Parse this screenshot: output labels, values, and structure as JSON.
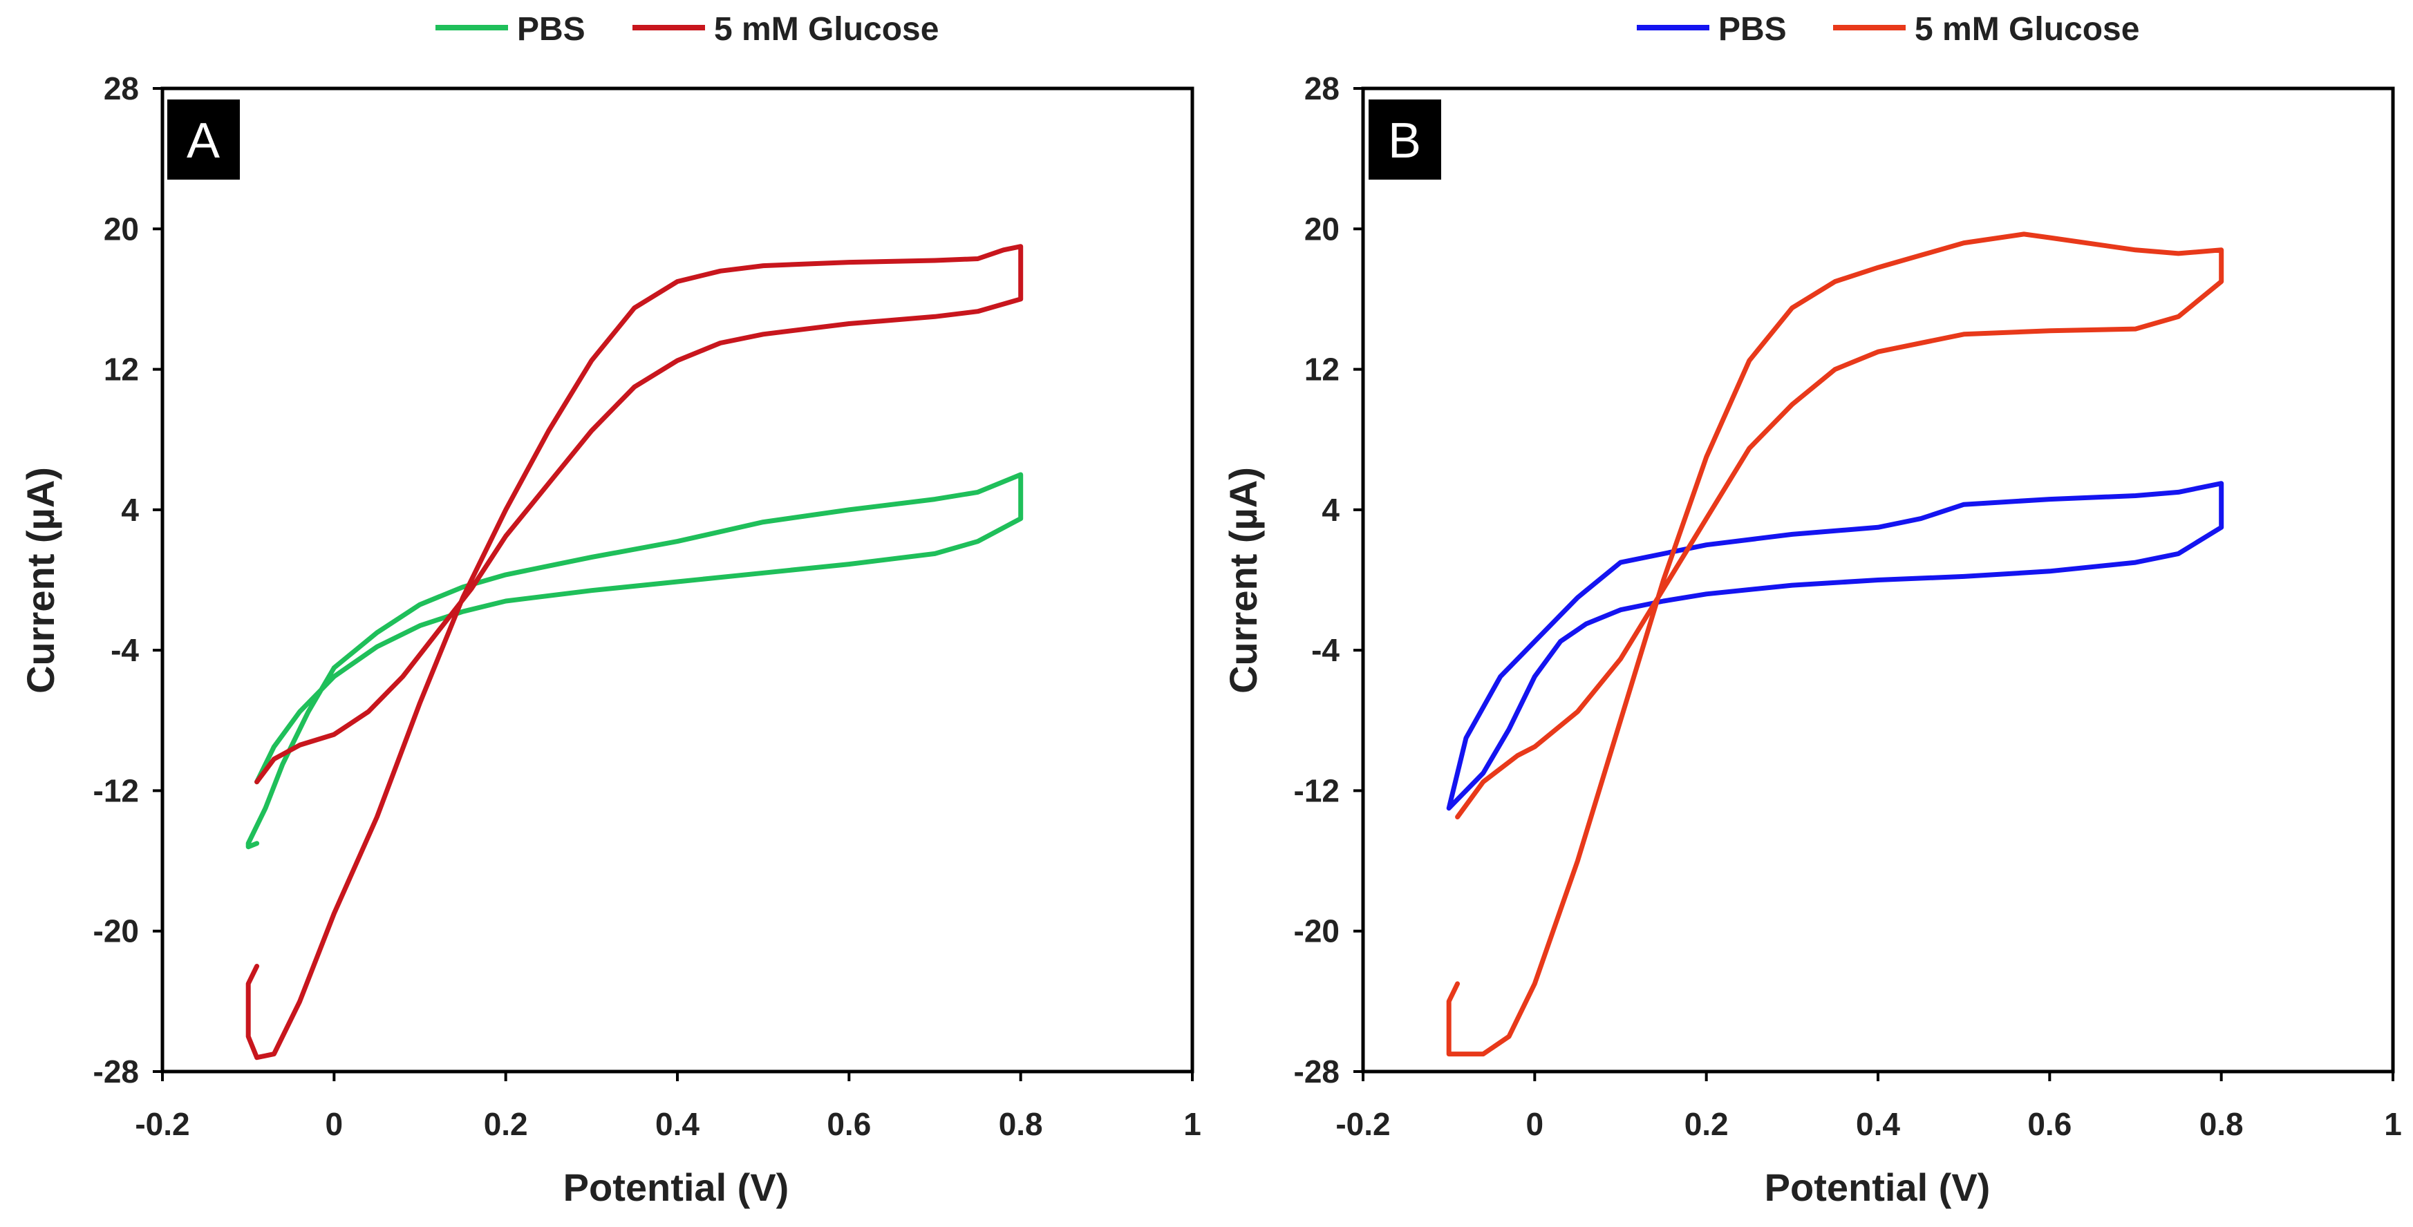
{
  "chart_data": [
    {
      "type": "line",
      "panel_label": "A",
      "xlabel": "Potential (V)",
      "ylabel": "Current (µA)",
      "xlim": [
        -0.2,
        1
      ],
      "ylim": [
        -28,
        28
      ],
      "xticks": [
        -0.2,
        0,
        0.2,
        0.4,
        0.6,
        0.8,
        1
      ],
      "xtick_labels": [
        "-0.2",
        "0",
        "0.2",
        "0.4",
        "0.6",
        "0.8",
        "1"
      ],
      "yticks": [
        -28,
        -20,
        -12,
        -4,
        4,
        12,
        20,
        28
      ],
      "ytick_labels": [
        "-28",
        "-20",
        "-12",
        "-4",
        "4",
        "12",
        "20",
        "28"
      ],
      "legend": "top-center",
      "series": [
        {
          "name": "PBS",
          "color": "#1fbf5a",
          "x": [
            -0.09,
            -0.07,
            -0.04,
            0.0,
            0.05,
            0.1,
            0.15,
            0.2,
            0.3,
            0.4,
            0.5,
            0.6,
            0.7,
            0.75,
            0.8,
            0.8,
            0.75,
            0.7,
            0.6,
            0.5,
            0.4,
            0.3,
            0.2,
            0.15,
            0.1,
            0.05,
            0.0,
            -0.03,
            -0.06,
            -0.08,
            -0.1,
            -0.1,
            -0.09
          ],
          "y": [
            -11.5,
            -9.5,
            -7.5,
            -5.5,
            -3.8,
            -2.6,
            -1.8,
            -1.2,
            -0.6,
            -0.1,
            0.4,
            0.9,
            1.5,
            2.2,
            3.5,
            6.0,
            5.0,
            4.6,
            4.0,
            3.3,
            2.2,
            1.3,
            0.3,
            -0.4,
            -1.4,
            -3.0,
            -5.0,
            -7.5,
            -10.5,
            -13.0,
            -15.0,
            -15.2,
            -15.0
          ]
        },
        {
          "name": "5 mM Glucose",
          "color": "#c8161d",
          "x": [
            -0.09,
            -0.07,
            -0.04,
            0.0,
            0.04,
            0.08,
            0.12,
            0.16,
            0.2,
            0.25,
            0.3,
            0.35,
            0.4,
            0.45,
            0.5,
            0.6,
            0.7,
            0.75,
            0.8,
            0.8,
            0.78,
            0.75,
            0.7,
            0.6,
            0.5,
            0.45,
            0.4,
            0.35,
            0.3,
            0.25,
            0.2,
            0.15,
            0.1,
            0.05,
            0.0,
            -0.04,
            -0.07,
            -0.09,
            -0.1,
            -0.1,
            -0.09
          ],
          "y": [
            -11.5,
            -10.2,
            -9.4,
            -8.8,
            -7.5,
            -5.5,
            -3.0,
            -0.5,
            2.5,
            5.5,
            8.5,
            11.0,
            12.5,
            13.5,
            14.0,
            14.6,
            15.0,
            15.3,
            16.0,
            19.0,
            18.8,
            18.3,
            18.2,
            18.1,
            17.9,
            17.6,
            17.0,
            15.5,
            12.5,
            8.5,
            4.0,
            -1.0,
            -7.0,
            -13.5,
            -19.0,
            -24.0,
            -27.0,
            -27.2,
            -26.0,
            -23.0,
            -22.0
          ]
        }
      ]
    },
    {
      "type": "line",
      "panel_label": "B",
      "xlabel": "Potential (V)",
      "ylabel": "Current (µA)",
      "xlim": [
        -0.2,
        1
      ],
      "ylim": [
        -28,
        28
      ],
      "xticks": [
        -0.2,
        0,
        0.2,
        0.4,
        0.6,
        0.8,
        1
      ],
      "xtick_labels": [
        "-0.2",
        "0",
        "0.2",
        "0.4",
        "0.6",
        "0.8",
        "1"
      ],
      "yticks": [
        -28,
        -20,
        -12,
        -4,
        4,
        12,
        20,
        28
      ],
      "ytick_labels": [
        "-28",
        "-20",
        "-12",
        "-4",
        "4",
        "12",
        "20",
        "28"
      ],
      "legend": "top-center",
      "series": [
        {
          "name": "PBS",
          "color": "#1414f0",
          "x": [
            -0.09,
            -0.06,
            -0.03,
            0.0,
            0.03,
            0.06,
            0.1,
            0.15,
            0.2,
            0.3,
            0.4,
            0.5,
            0.6,
            0.7,
            0.75,
            0.8,
            0.8,
            0.75,
            0.7,
            0.6,
            0.5,
            0.45,
            0.4,
            0.3,
            0.2,
            0.1,
            0.05,
            0.0,
            -0.04,
            -0.08,
            -0.1,
            -0.09
          ],
          "y": [
            -12.5,
            -11.0,
            -8.5,
            -5.5,
            -3.5,
            -2.5,
            -1.7,
            -1.2,
            -0.8,
            -0.3,
            0.0,
            0.2,
            0.5,
            1.0,
            1.5,
            3.0,
            5.5,
            5.0,
            4.8,
            4.6,
            4.3,
            3.5,
            3.0,
            2.6,
            2.0,
            1.0,
            -1.0,
            -3.5,
            -5.5,
            -9.0,
            -13.0,
            -12.5
          ]
        },
        {
          "name": "5 mM Glucose",
          "color": "#e8391a",
          "x": [
            -0.09,
            -0.06,
            -0.02,
            0.0,
            0.05,
            0.1,
            0.15,
            0.2,
            0.25,
            0.3,
            0.35,
            0.4,
            0.5,
            0.6,
            0.7,
            0.75,
            0.8,
            0.8,
            0.75,
            0.7,
            0.6,
            0.57,
            0.5,
            0.45,
            0.4,
            0.35,
            0.3,
            0.25,
            0.2,
            0.15,
            0.1,
            0.05,
            0.0,
            -0.03,
            -0.06,
            -0.09,
            -0.1,
            -0.1,
            -0.09
          ],
          "y": [
            -13.5,
            -11.5,
            -10.0,
            -9.5,
            -7.5,
            -4.5,
            -0.5,
            3.5,
            7.5,
            10.0,
            12.0,
            13.0,
            14.0,
            14.2,
            14.3,
            15.0,
            17.0,
            18.8,
            18.6,
            18.8,
            19.5,
            19.7,
            19.2,
            18.5,
            17.8,
            17.0,
            15.5,
            12.5,
            7.0,
            0.0,
            -8.0,
            -16.0,
            -23.0,
            -26.0,
            -27.0,
            -27.0,
            -27.0,
            -24.0,
            -23.0
          ]
        }
      ]
    }
  ]
}
